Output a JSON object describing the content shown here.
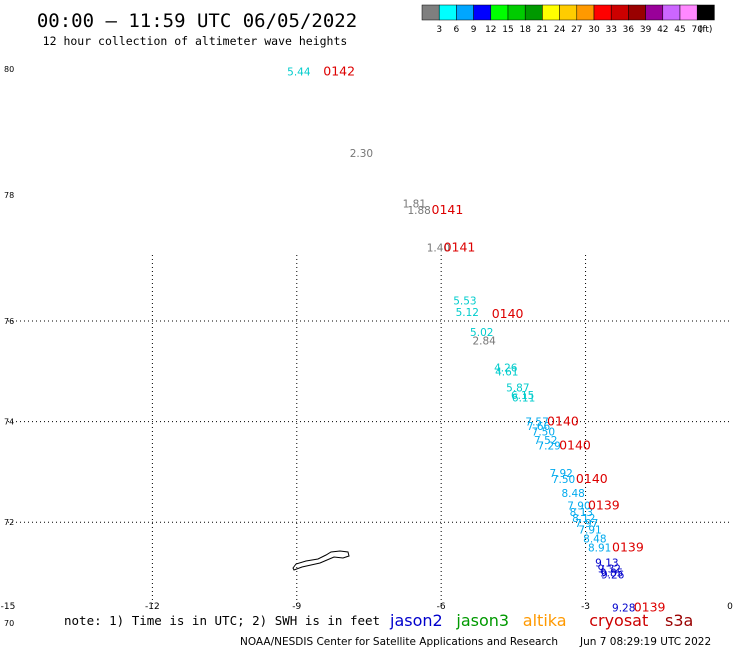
{
  "header": {
    "title": "00:00 – 11:59 UTC 06/05/2022",
    "subtitle": "12 hour collection of altimeter wave heights"
  },
  "color_scale": {
    "unit": "(ft)",
    "bins": [
      {
        "color": "#7f7f7f",
        "label": "3"
      },
      {
        "color": "#00ffff",
        "label": "6"
      },
      {
        "color": "#00a6ff",
        "label": "9"
      },
      {
        "color": "#0000ff",
        "label": "12"
      },
      {
        "color": "#00ff00",
        "label": "15"
      },
      {
        "color": "#00cc00",
        "label": "18"
      },
      {
        "color": "#009900",
        "label": "21"
      },
      {
        "color": "#ffff00",
        "label": "24"
      },
      {
        "color": "#ffcc00",
        "label": "27"
      },
      {
        "color": "#ff9900",
        "label": "30"
      },
      {
        "color": "#ff0000",
        "label": "33"
      },
      {
        "color": "#cc0000",
        "label": "36"
      },
      {
        "color": "#990000",
        "label": "39"
      },
      {
        "color": "#990099",
        "label": "42"
      },
      {
        "color": "#cc66ff",
        "label": "45"
      },
      {
        "color": "#ff88ff",
        "label": "70"
      },
      {
        "color": "#000000",
        "label": ""
      }
    ]
  },
  "axes": {
    "lon_ticks": [
      "-15",
      "-12",
      "-9",
      "-6",
      "-3",
      "0"
    ],
    "lat_ticks": [
      "80",
      "78",
      "76",
      "74",
      "72",
      "70"
    ]
  },
  "wave_labels": [
    {
      "text": "5.44",
      "lon": -9.2,
      "lat": 79.9,
      "color": "#00cccc"
    },
    {
      "text": "2.30",
      "lon": -7.9,
      "lat": 78.6,
      "color": "#777777"
    },
    {
      "text": "1.81",
      "lon": -6.8,
      "lat": 77.8,
      "color": "#777777"
    },
    {
      "text": "1.88",
      "lon": -6.7,
      "lat": 77.7,
      "color": "#777777"
    },
    {
      "text": "1.40",
      "lon": -6.3,
      "lat": 77.1,
      "color": "#777777"
    },
    {
      "text": "5.53",
      "lon": -5.75,
      "lat": 76.26,
      "color": "#00cccc"
    },
    {
      "text": "5.12",
      "lon": -5.7,
      "lat": 76.08,
      "color": "#00cccc"
    },
    {
      "text": "5.02",
      "lon": -5.4,
      "lat": 75.7,
      "color": "#00cccc"
    },
    {
      "text": "2.84",
      "lon": -5.35,
      "lat": 75.53,
      "color": "#777777"
    },
    {
      "text": "4.26",
      "lon": -4.9,
      "lat": 75.0,
      "color": "#00cccc"
    },
    {
      "text": "4.61",
      "lon": -4.88,
      "lat": 74.92,
      "color": "#00cccc"
    },
    {
      "text": "5.87",
      "lon": -4.65,
      "lat": 74.6,
      "color": "#00cccc"
    },
    {
      "text": "6.15",
      "lon": -4.55,
      "lat": 74.45,
      "color": "#00cccc"
    },
    {
      "text": "6.11",
      "lon": -4.53,
      "lat": 74.4,
      "color": "#00cccc"
    },
    {
      "text": "7.57",
      "lon": -4.25,
      "lat": 73.92,
      "color": "#00aaee"
    },
    {
      "text": "7.66",
      "lon": -4.22,
      "lat": 73.83,
      "color": "#00aaee"
    },
    {
      "text": "7.50",
      "lon": -4.12,
      "lat": 73.72,
      "color": "#00aaee"
    },
    {
      "text": "7.52",
      "lon": -4.07,
      "lat": 73.55,
      "color": "#00aaee"
    },
    {
      "text": "7.29",
      "lon": -4.0,
      "lat": 73.45,
      "color": "#00aaee"
    },
    {
      "text": "7.92",
      "lon": -3.75,
      "lat": 72.9,
      "color": "#00aaee"
    },
    {
      "text": "7.50",
      "lon": -3.7,
      "lat": 72.78,
      "color": "#00aaee"
    },
    {
      "text": "8.48",
      "lon": -3.5,
      "lat": 72.5,
      "color": "#00aaee"
    },
    {
      "text": "7.90",
      "lon": -3.38,
      "lat": 72.25,
      "color": "#00aaee"
    },
    {
      "text": "8.13",
      "lon": -3.33,
      "lat": 72.12,
      "color": "#00aaee"
    },
    {
      "text": "8.12",
      "lon": -3.28,
      "lat": 72.0,
      "color": "#00aaee"
    },
    {
      "text": "7.97",
      "lon": -3.22,
      "lat": 71.9,
      "color": "#00aaee"
    },
    {
      "text": "7.91",
      "lon": -3.15,
      "lat": 71.78,
      "color": "#00aaee"
    },
    {
      "text": "8.48",
      "lon": -3.05,
      "lat": 71.6,
      "color": "#00aaee"
    },
    {
      "text": "8.91",
      "lon": -2.95,
      "lat": 71.42,
      "color": "#00aaee"
    },
    {
      "text": "9.13",
      "lon": -2.8,
      "lat": 71.12,
      "color": "#0000cc"
    },
    {
      "text": "9.32",
      "lon": -2.75,
      "lat": 71.0,
      "color": "#0000cc"
    },
    {
      "text": "9.85",
      "lon": -2.7,
      "lat": 70.92,
      "color": "#0000cc"
    },
    {
      "text": "9.26",
      "lon": -2.68,
      "lat": 70.88,
      "color": "#0000cc"
    },
    {
      "text": "9.28",
      "lon": -2.45,
      "lat": 70.22,
      "color": "#0000cc"
    }
  ],
  "orbit_labels": [
    {
      "text": "0142",
      "lon": -8.45,
      "lat": 79.9
    },
    {
      "text": "0141",
      "lon": -6.2,
      "lat": 77.7
    },
    {
      "text": "0141",
      "lon": -5.95,
      "lat": 77.1
    },
    {
      "text": "0140",
      "lon": -4.95,
      "lat": 76.05
    },
    {
      "text": "0140",
      "lon": -3.8,
      "lat": 73.92
    },
    {
      "text": "0140",
      "lon": -3.55,
      "lat": 73.45
    },
    {
      "text": "0140",
      "lon": -3.2,
      "lat": 72.78
    },
    {
      "text": "0139",
      "lon": -2.95,
      "lat": 72.25
    },
    {
      "text": "0139",
      "lon": -2.45,
      "lat": 71.42
    },
    {
      "text": "0139",
      "lon": -2.0,
      "lat": 70.22
    }
  ],
  "footer": {
    "note": "note: 1) Time is in UTC; 2) SWH is in feet",
    "satellites": [
      {
        "name": "jason2",
        "color": "#0000cc"
      },
      {
        "name": "jason3",
        "color": "#009900"
      },
      {
        "name": "altika",
        "color": "#ff9900"
      },
      {
        "name": "cryosat",
        "color": "#cc0000"
      },
      {
        "name": "s3a",
        "color": "#990000"
      }
    ],
    "credit": "NOAA/NESDIS Center for Satellite Applications and Research",
    "timestamp": "Jun  7 08:29:19 UTC 2022"
  }
}
